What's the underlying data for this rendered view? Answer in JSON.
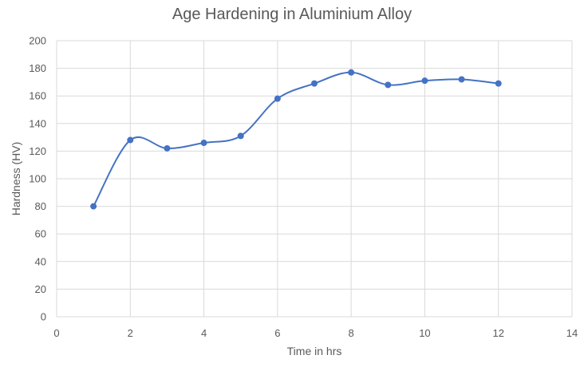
{
  "chart_data": {
    "type": "scatter",
    "title": "Age Hardening in Aluminium Alloy",
    "xlabel": "Time in hrs",
    "ylabel": "Hardness (HV)",
    "xlim": [
      0,
      14
    ],
    "ylim": [
      0,
      200
    ],
    "x_ticks": [
      0,
      2,
      4,
      6,
      8,
      10,
      12,
      14
    ],
    "y_ticks": [
      0,
      20,
      40,
      60,
      80,
      100,
      120,
      140,
      160,
      180,
      200
    ],
    "grid": true,
    "smooth_line": true,
    "series": [
      {
        "color": "#4472c4",
        "points": [
          {
            "x": 1,
            "y": 80
          },
          {
            "x": 2,
            "y": 128
          },
          {
            "x": 3,
            "y": 122
          },
          {
            "x": 4,
            "y": 126
          },
          {
            "x": 5,
            "y": 131
          },
          {
            "x": 6,
            "y": 158
          },
          {
            "x": 7,
            "y": 169
          },
          {
            "x": 8,
            "y": 177
          },
          {
            "x": 9,
            "y": 168
          },
          {
            "x": 10,
            "y": 171
          },
          {
            "x": 11,
            "y": 172
          },
          {
            "x": 12,
            "y": 169
          }
        ]
      }
    ]
  }
}
